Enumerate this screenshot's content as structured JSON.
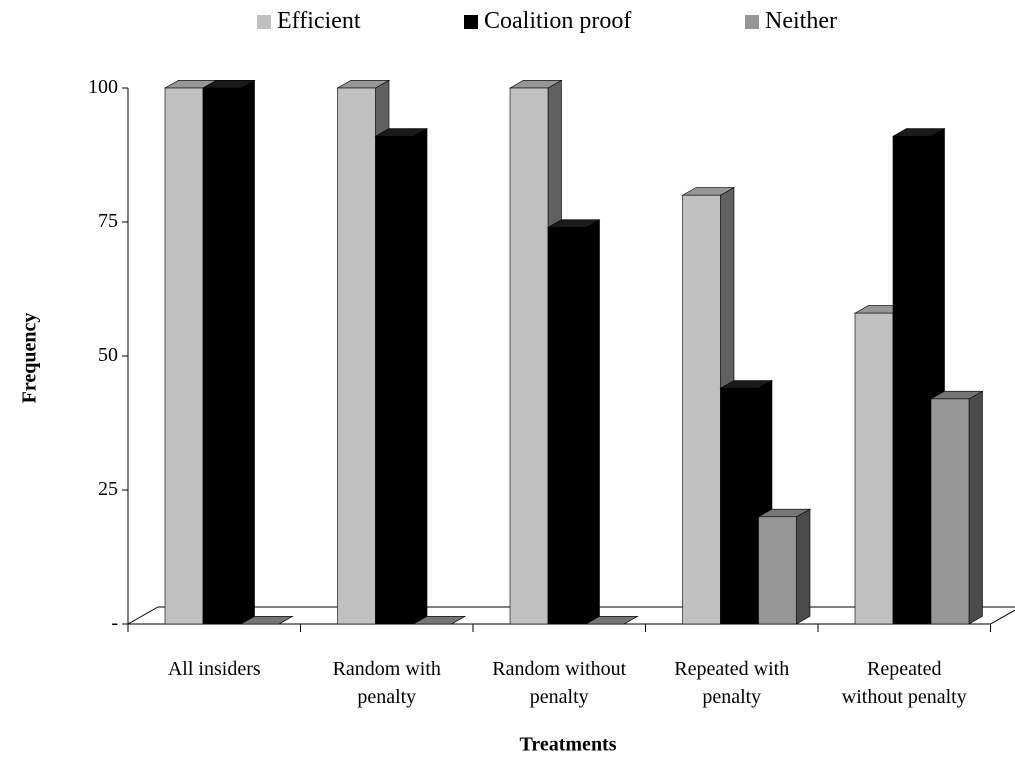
{
  "chart_data": {
    "type": "bar",
    "title": "",
    "xlabel": "Treatments",
    "ylabel": "Frequency",
    "ylim": [
      0,
      100
    ],
    "y_ticks": [
      "-",
      "25",
      "50",
      "75",
      "100"
    ],
    "categories": [
      [
        "All insiders"
      ],
      [
        "Random with",
        "penalty"
      ],
      [
        "Random without",
        "penalty"
      ],
      [
        "Repeated with",
        "penalty"
      ],
      [
        "Repeated",
        "without penalty"
      ]
    ],
    "series": [
      {
        "name": "Efficient",
        "color": "#c0c0c0",
        "values": [
          100,
          100,
          100,
          80,
          58
        ]
      },
      {
        "name": "Coalition proof",
        "color": "#000000",
        "values": [
          100,
          91,
          74,
          44,
          91
        ]
      },
      {
        "name": "Neither",
        "color": "#969696",
        "values": [
          0,
          0,
          0,
          20,
          42
        ]
      }
    ],
    "legend_position": "top",
    "grid": false,
    "style": "3d-column"
  }
}
